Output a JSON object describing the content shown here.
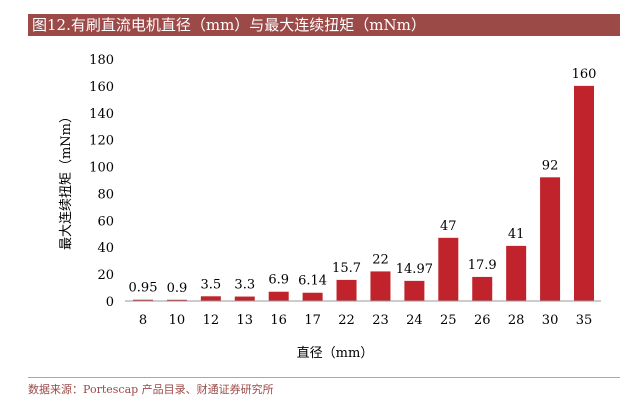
{
  "title": "图12.有刷直流电机直径（mm）与最大连续扭矩（mNm）",
  "source": "数据来源：Portescap 产品目录、财通证券研究所",
  "colors": {
    "bar": "#c0232b",
    "title_bg": "#9b4a47"
  },
  "chart_data": {
    "type": "bar",
    "title": "图12.有刷直流电机直径（mm）与最大连续扭矩（mNm）",
    "xlabel": "直径（mm）",
    "ylabel": "最大连续扭矩（mNm）",
    "categories": [
      "8",
      "10",
      "12",
      "13",
      "16",
      "17",
      "22",
      "23",
      "24",
      "25",
      "26",
      "28",
      "30",
      "35"
    ],
    "values": [
      0.95,
      0.9,
      3.5,
      3.3,
      6.9,
      6.14,
      15.7,
      22,
      14.97,
      47,
      17.9,
      41,
      92,
      160
    ],
    "labels": [
      "0.95",
      "0.9",
      "3.5",
      "3.3",
      "6.9",
      "6.14",
      "15.7",
      "22",
      "14.97",
      "47",
      "17.9",
      "41",
      "92",
      "160"
    ],
    "ylim": [
      0,
      180
    ],
    "yticks": [
      "0",
      "20",
      "40",
      "60",
      "80",
      "100",
      "120",
      "140",
      "160",
      "180"
    ],
    "grid": false,
    "legend": "none"
  }
}
